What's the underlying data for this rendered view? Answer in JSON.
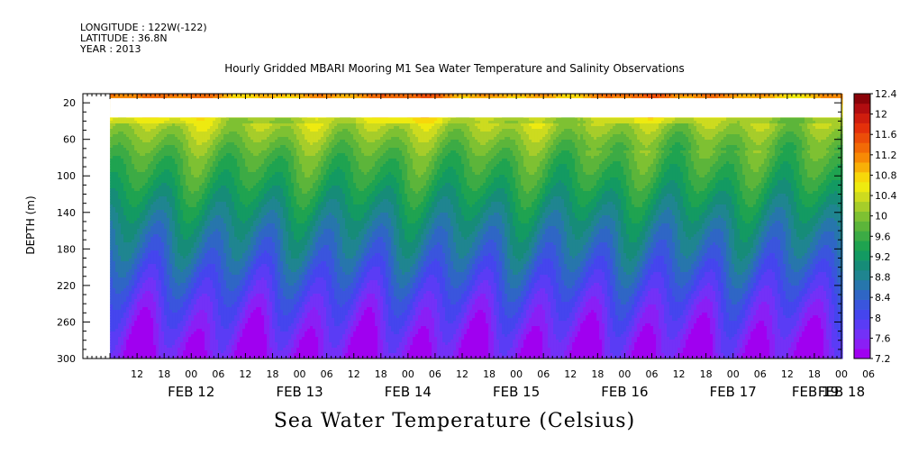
{
  "header": {
    "longitude": "LONGITUDE : 122W(-122)",
    "latitude": "LATITUDE : 36.8N",
    "year": "YEAR : 2013"
  },
  "chart_data": {
    "type": "heatmap",
    "title": "Hourly Gridded MBARI Mooring M1 Sea Water Temperature and Salinity Observations",
    "xlabel": "Sea Water Temperature (Celsius)",
    "ylabel": "DEPTH (m)",
    "y_axis": {
      "ticks": [
        20,
        60,
        100,
        140,
        180,
        220,
        260,
        300
      ],
      "range": [
        10,
        300
      ],
      "inverted": true
    },
    "x_axis": {
      "range_hours_from_feb12_00": [
        6,
        168
      ],
      "hour_ticks": [
        "12",
        "18",
        "00",
        "06",
        "12",
        "18",
        "00",
        "06",
        "12",
        "18",
        "00",
        "06",
        "12",
        "18",
        "00",
        "06",
        "12",
        "18",
        "00",
        "06",
        "12",
        "18",
        "00",
        "06",
        "12",
        "18",
        "00",
        "06"
      ],
      "date_labels": [
        "FEB 12",
        "FEB 13",
        "FEB 14",
        "FEB 15",
        "FEB 16",
        "FEB 17",
        "FEB 18",
        "FEB 19"
      ]
    },
    "colorbar": {
      "labels": [
        "12.4",
        "12",
        "11.6",
        "11.2",
        "10.8",
        "10.4",
        "10",
        "9.6",
        "9.2",
        "8.8",
        "8.4",
        "8",
        "7.6",
        "7.2"
      ],
      "levels": [
        7.2,
        7.4,
        7.6,
        7.8,
        8.0,
        8.2,
        8.4,
        8.6,
        8.8,
        9.0,
        9.2,
        9.4,
        9.6,
        9.8,
        10.0,
        10.2,
        10.4,
        10.6,
        10.8,
        11.0,
        11.2,
        11.4,
        11.6,
        11.8,
        12.0,
        12.2,
        12.4
      ],
      "colors": [
        "#a000f0",
        "#8a1ff5",
        "#7331f7",
        "#5a3cf5",
        "#4545ee",
        "#3a55dd",
        "#2f66c5",
        "#2776ac",
        "#1f8590",
        "#168c78",
        "#139a62",
        "#1fa350",
        "#3cab45",
        "#5cb53a",
        "#7ec132",
        "#a6cd2a",
        "#cddb1f",
        "#eeea10",
        "#f7d70a",
        "#f8b007",
        "#f78a05",
        "#f26a06",
        "#ec4d08",
        "#e4300a",
        "#cf1d0e",
        "#b10d10",
        "#8a0309"
      ]
    },
    "data_gap_depth_m": [
      15,
      36
    ],
    "data_gap_start_hours": [
      0,
      6
    ],
    "temperature_profile": {
      "depth_m": [
        10,
        36,
        60,
        80,
        100,
        120,
        140,
        160,
        180,
        200,
        220,
        240,
        260,
        280,
        300
      ],
      "temp_c": [
        11.3,
        10.5,
        10.1,
        9.8,
        9.6,
        9.35,
        9.1,
        8.85,
        8.65,
        8.4,
        8.15,
        7.9,
        7.7,
        7.5,
        7.35
      ]
    },
    "grid": false
  }
}
